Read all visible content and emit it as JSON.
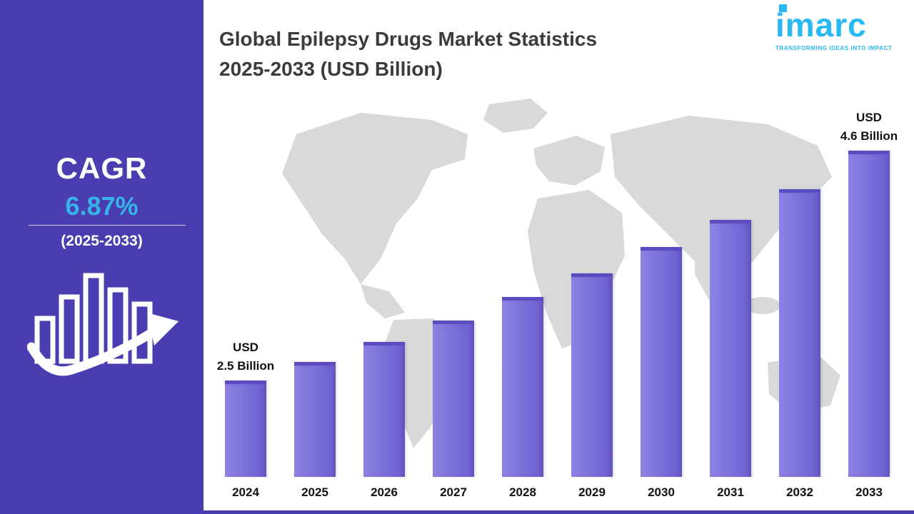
{
  "sidebar": {
    "cagr_label": "CAGR",
    "cagr_value": "6.87%",
    "cagr_period": "(2025-2033)",
    "bg_color": "#4a3db1",
    "accent_color": "#35b4ea",
    "icon": "bar-chart-growth-arrow-icon"
  },
  "header": {
    "title_line1": "Global Epilepsy Drugs Market Statistics",
    "title_line2": "2025-2033 (USD Billion)"
  },
  "logo": {
    "name": "imarc",
    "tagline": "TRANSFORMING IDEAS INTO IMPACT",
    "color": "#29b9f2"
  },
  "chart_data": {
    "type": "bar",
    "title": "Global Epilepsy Drugs Market Statistics 2025-2033 (USD Billion)",
    "unit": "USD Billion",
    "categories": [
      "2024",
      "2025",
      "2026",
      "2027",
      "2028",
      "2029",
      "2030",
      "2031",
      "2032",
      "2033"
    ],
    "values": [
      2.5,
      2.67,
      2.85,
      3.05,
      3.26,
      3.48,
      3.72,
      3.97,
      4.25,
      4.6
    ],
    "cagr_percent": 6.87,
    "cagr_period": "2025-2033",
    "bar_color": "#7b6ed8",
    "annotations": [
      {
        "index": 0,
        "lines": [
          "USD",
          "2.5 Billion"
        ]
      },
      {
        "index": 9,
        "lines": [
          "USD",
          "4.6 Billion"
        ]
      }
    ],
    "xlabel": "",
    "ylabel": "",
    "ylim": [
      0,
      5
    ],
    "grid": false,
    "legend": "none",
    "background": "world-map-silhouette"
  }
}
